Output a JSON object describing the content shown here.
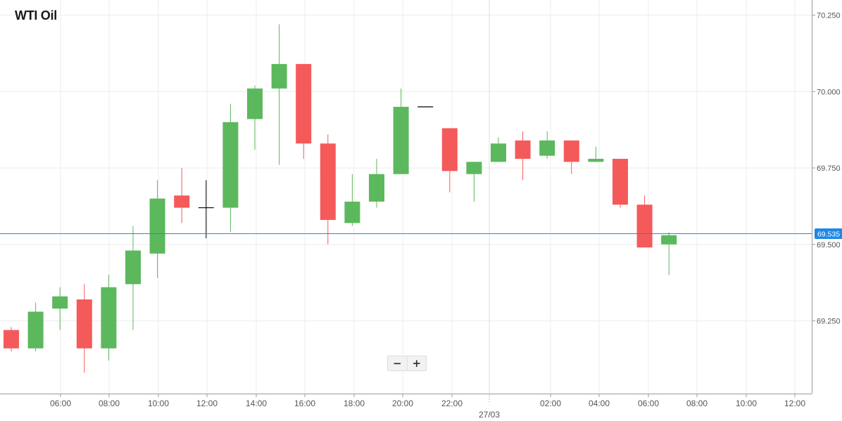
{
  "title": "WTI Oil",
  "zoom": {
    "minus_label": "−",
    "plus_label": "+"
  },
  "colors": {
    "up": "#5cb85c",
    "down": "#f55a5a",
    "neutral": "#000000",
    "price_line": "#1e88e5",
    "grid": "#ececec",
    "axis": "#9a9a9a",
    "tick_text": "#555555"
  },
  "chart_data": {
    "type": "candlestick",
    "title": "WTI Oil",
    "ylim": [
      69.0,
      70.28
    ],
    "y_ticks": [
      "69.250",
      "69.500",
      "69.750",
      "70.000",
      "70.250"
    ],
    "x_tick_labels": [
      "06:00",
      "08:00",
      "10:00",
      "12:00",
      "14:00",
      "16:00",
      "18:00",
      "20:00",
      "22:00",
      "02:00",
      "04:00",
      "06:00",
      "08:00",
      "10:00",
      "12:00"
    ],
    "date_label": "27/03",
    "current_price": "69.535",
    "grid": true,
    "candles": [
      {
        "time": "04:00",
        "open": 69.22,
        "high": 69.23,
        "low": 69.15,
        "close": 69.16
      },
      {
        "time": "05:00",
        "open": 69.16,
        "high": 69.31,
        "low": 69.15,
        "close": 69.28
      },
      {
        "time": "06:00",
        "open": 69.29,
        "high": 69.36,
        "low": 69.22,
        "close": 69.33
      },
      {
        "time": "07:00",
        "open": 69.32,
        "high": 69.37,
        "low": 69.08,
        "close": 69.16
      },
      {
        "time": "08:00",
        "open": 69.16,
        "high": 69.4,
        "low": 69.12,
        "close": 69.36
      },
      {
        "time": "09:00",
        "open": 69.37,
        "high": 69.56,
        "low": 69.22,
        "close": 69.48
      },
      {
        "time": "10:00",
        "open": 69.47,
        "high": 69.71,
        "low": 69.39,
        "close": 69.65
      },
      {
        "time": "11:00",
        "open": 69.66,
        "high": 69.75,
        "low": 69.57,
        "close": 69.62
      },
      {
        "time": "12:00",
        "open": 69.62,
        "high": 69.71,
        "low": 69.52,
        "close": 69.62
      },
      {
        "time": "13:00",
        "open": 69.62,
        "high": 69.96,
        "low": 69.54,
        "close": 69.9
      },
      {
        "time": "14:00",
        "open": 69.91,
        "high": 70.02,
        "low": 69.81,
        "close": 70.01
      },
      {
        "time": "15:00",
        "open": 70.01,
        "high": 70.22,
        "low": 69.76,
        "close": 70.09
      },
      {
        "time": "16:00",
        "open": 70.09,
        "high": 70.09,
        "low": 69.78,
        "close": 69.83
      },
      {
        "time": "17:00",
        "open": 69.83,
        "high": 69.86,
        "low": 69.5,
        "close": 69.58
      },
      {
        "time": "18:00",
        "open": 69.57,
        "high": 69.73,
        "low": 69.56,
        "close": 69.64
      },
      {
        "time": "19:00",
        "open": 69.64,
        "high": 69.78,
        "low": 69.62,
        "close": 69.73
      },
      {
        "time": "20:00",
        "open": 69.73,
        "high": 70.01,
        "low": 69.73,
        "close": 69.95
      },
      {
        "time": "21:00",
        "open": 69.95,
        "high": 69.95,
        "low": 69.95,
        "close": 69.95
      },
      {
        "time": "22:00",
        "open": 69.88,
        "high": 69.88,
        "low": 69.67,
        "close": 69.74
      },
      {
        "time": "23:00",
        "open": 69.73,
        "high": 69.77,
        "low": 69.64,
        "close": 69.77
      },
      {
        "time": "01:00",
        "open": 69.77,
        "high": 69.85,
        "low": 69.77,
        "close": 69.83
      },
      {
        "time": "02:00",
        "open": 69.84,
        "high": 69.87,
        "low": 69.71,
        "close": 69.78
      },
      {
        "time": "03:00",
        "open": 69.79,
        "high": 69.87,
        "low": 69.78,
        "close": 69.84
      },
      {
        "time": "04:00",
        "open": 69.84,
        "high": 69.84,
        "low": 69.73,
        "close": 69.77
      },
      {
        "time": "05:00",
        "open": 69.77,
        "high": 69.82,
        "low": 69.77,
        "close": 69.78
      },
      {
        "time": "06:00",
        "open": 69.78,
        "high": 69.78,
        "low": 69.62,
        "close": 69.63
      },
      {
        "time": "07:00",
        "open": 69.63,
        "high": 69.66,
        "low": 69.49,
        "close": 69.49
      },
      {
        "time": "08:00",
        "open": 69.5,
        "high": 69.54,
        "low": 69.4,
        "close": 69.53
      }
    ]
  }
}
